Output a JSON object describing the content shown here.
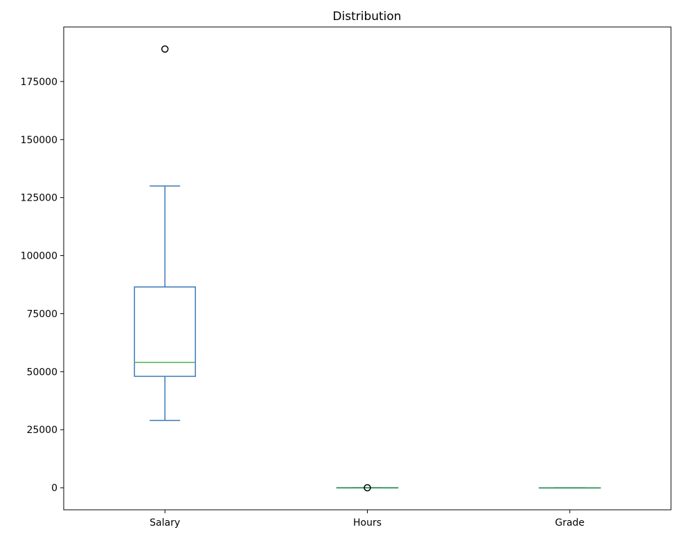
{
  "chart_data": {
    "type": "box",
    "title": "Distribution",
    "xlabel": "",
    "ylabel": "",
    "categories": [
      "Salary",
      "Hours",
      "Grade"
    ],
    "ylim": [
      -9500,
      198500
    ],
    "yticks": [
      0,
      25000,
      50000,
      75000,
      100000,
      125000,
      150000,
      175000
    ],
    "grid": false,
    "colors": {
      "box": "#3a78b8",
      "median": "#4caf50",
      "flier": "#000000",
      "axes": "#000000"
    },
    "boxes": [
      {
        "name": "Salary",
        "whisker_low": 29000,
        "q1": 48000,
        "median": 54000,
        "q3": 86500,
        "whisker_high": 130000,
        "fliers": [
          189000
        ]
      },
      {
        "name": "Hours",
        "whisker_low": 20,
        "q1": 35,
        "median": 40,
        "q3": 45,
        "whisker_high": 60,
        "fliers": [
          5
        ]
      },
      {
        "name": "Grade",
        "whisker_low": 1,
        "q1": 2,
        "median": 3,
        "q3": 4,
        "whisker_high": 5,
        "fliers": []
      }
    ]
  }
}
